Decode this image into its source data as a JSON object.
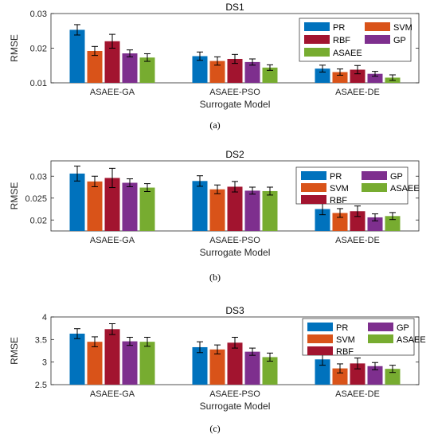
{
  "chart_data": [
    {
      "type": "bar",
      "title": "DS1",
      "caption": "(a)",
      "xlabel": "Surrogate Model",
      "ylabel": "RMSE",
      "categories": [
        "ASAEE-GA",
        "ASAEE-PSO",
        "ASAEE-DE"
      ],
      "ylim": [
        0.01,
        0.03
      ],
      "yticks": [
        0.01,
        0.02,
        0.03
      ],
      "yticklabels": [
        "0.01",
        "0.02",
        "0.03"
      ],
      "legend_position": "top-right",
      "legend_entries": [
        "PR",
        "SVM",
        "RBF",
        "GP",
        "ASAEE"
      ],
      "series": [
        {
          "name": "PR",
          "values": [
            0.0253,
            0.0177,
            0.0141
          ],
          "errors": [
            0.0015,
            0.0012,
            0.001
          ]
        },
        {
          "name": "SVM",
          "values": [
            0.0192,
            0.0163,
            0.0131
          ],
          "errors": [
            0.0013,
            0.0012,
            0.0009
          ]
        },
        {
          "name": "RBF",
          "values": [
            0.022,
            0.0169,
            0.0138
          ],
          "errors": [
            0.002,
            0.0013,
            0.0012
          ]
        },
        {
          "name": "GP",
          "values": [
            0.0185,
            0.016,
            0.0126
          ],
          "errors": [
            0.001,
            0.0009,
            0.0007
          ]
        },
        {
          "name": "ASAEE",
          "values": [
            0.0173,
            0.0144,
            0.0115
          ],
          "errors": [
            0.0011,
            0.0008,
            0.0008
          ]
        }
      ]
    },
    {
      "type": "bar",
      "title": "DS2",
      "caption": "(b)",
      "xlabel": "Surrogate Model",
      "ylabel": "RMSE",
      "categories": [
        "ASAEE-GA",
        "ASAEE-PSO",
        "ASAEE-DE"
      ],
      "ylim": [
        0.0175,
        0.0335
      ],
      "yticks": [
        0.02,
        0.025,
        0.03
      ],
      "yticklabels": [
        "0.02",
        "0.025",
        "0.03"
      ],
      "legend_position": "right",
      "legend_entries": [
        "PR",
        "SVM",
        "RBF",
        "GP",
        "ASAEE"
      ],
      "series": [
        {
          "name": "PR",
          "values": [
            0.0306,
            0.0289,
            0.0225
          ],
          "errors": [
            0.0017,
            0.0012,
            0.0013
          ]
        },
        {
          "name": "SVM",
          "values": [
            0.0288,
            0.027,
            0.0216
          ],
          "errors": [
            0.0012,
            0.001,
            0.001
          ]
        },
        {
          "name": "RBF",
          "values": [
            0.0296,
            0.0276,
            0.022
          ],
          "errors": [
            0.0022,
            0.0012,
            0.0012
          ]
        },
        {
          "name": "GP",
          "values": [
            0.0285,
            0.0267,
            0.0206
          ],
          "errors": [
            0.0009,
            0.0008,
            0.0008
          ]
        },
        {
          "name": "ASAEE",
          "values": [
            0.0274,
            0.0266,
            0.0209
          ],
          "errors": [
            0.0009,
            0.0009,
            0.0008
          ]
        }
      ]
    },
    {
      "type": "bar",
      "title": "DS3",
      "caption": "(c)",
      "xlabel": "Surrogate Model",
      "ylabel": "RMSE",
      "categories": [
        "ASAEE-GA",
        "ASAEE-PSO",
        "ASAEE-DE"
      ],
      "ylim": [
        2.5,
        4.0
      ],
      "yticks": [
        2.5,
        3.0,
        3.5,
        4.0
      ],
      "yticklabels": [
        "2.5",
        "3",
        "3.5",
        "4"
      ],
      "legend_position": "top-right",
      "legend_entries": [
        "PR",
        "SVM",
        "RBF",
        "GP",
        "ASAEE"
      ],
      "series": [
        {
          "name": "PR",
          "values": [
            3.63,
            3.33,
            3.06
          ],
          "errors": [
            0.11,
            0.12,
            0.13
          ]
        },
        {
          "name": "SVM",
          "values": [
            3.45,
            3.28,
            2.86
          ],
          "errors": [
            0.11,
            0.1,
            0.1
          ]
        },
        {
          "name": "RBF",
          "values": [
            3.73,
            3.43,
            2.97
          ],
          "errors": [
            0.12,
            0.12,
            0.12
          ]
        },
        {
          "name": "GP",
          "values": [
            3.46,
            3.23,
            2.91
          ],
          "errors": [
            0.09,
            0.08,
            0.08
          ]
        },
        {
          "name": "ASAEE",
          "values": [
            3.45,
            3.11,
            2.85
          ],
          "errors": [
            0.1,
            0.09,
            0.08
          ]
        }
      ]
    }
  ],
  "colors": {
    "PR": "#0072BD",
    "SVM": "#D95319",
    "RBF": "#A2142F",
    "GP": "#7E2F8E",
    "ASAEE": "#77AC30"
  }
}
